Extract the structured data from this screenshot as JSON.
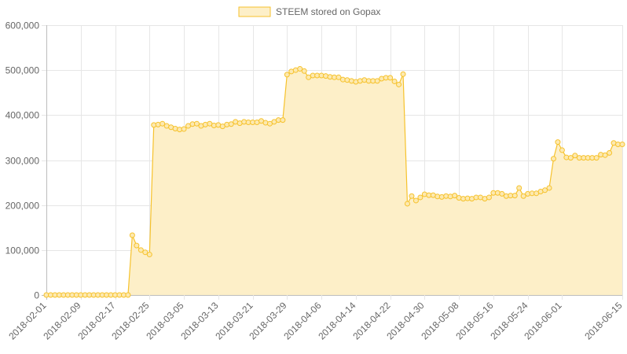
{
  "chart_data": {
    "type": "area",
    "legend": {
      "label": "STEEM stored on Gopax",
      "position": "top"
    },
    "colors": {
      "line": "#f6c22c",
      "fill": "#fdefc8",
      "point_fill": "#fde9b0",
      "grid": "#e6e6e6",
      "axis_text": "#666666"
    },
    "grid": true,
    "ylim": [
      0,
      600000
    ],
    "y_ticks": [
      "0",
      "100,000",
      "200,000",
      "300,000",
      "400,000",
      "500,000",
      "600,000"
    ],
    "x_range": [
      "2018-02-01",
      "2018-06-15"
    ],
    "x_ticks": [
      "2018-02-01",
      "2018-02-09",
      "2018-02-17",
      "2018-02-25",
      "2018-03-05",
      "2018-03-13",
      "2018-03-21",
      "2018-03-29",
      "2018-04-06",
      "2018-04-14",
      "2018-04-22",
      "2018-04-30",
      "2018-05-08",
      "2018-05-16",
      "2018-05-24",
      "2018-06-01",
      "2018-06-15"
    ],
    "x": [
      "2018-02-01",
      "2018-02-02",
      "2018-02-03",
      "2018-02-04",
      "2018-02-05",
      "2018-02-06",
      "2018-02-07",
      "2018-02-08",
      "2018-02-09",
      "2018-02-10",
      "2018-02-11",
      "2018-02-12",
      "2018-02-13",
      "2018-02-14",
      "2018-02-15",
      "2018-02-16",
      "2018-02-17",
      "2018-02-18",
      "2018-02-19",
      "2018-02-20",
      "2018-02-21",
      "2018-02-22",
      "2018-02-23",
      "2018-02-24",
      "2018-02-25",
      "2018-02-26",
      "2018-02-27",
      "2018-02-28",
      "2018-03-01",
      "2018-03-02",
      "2018-03-03",
      "2018-03-04",
      "2018-03-05",
      "2018-03-06",
      "2018-03-07",
      "2018-03-08",
      "2018-03-09",
      "2018-03-10",
      "2018-03-11",
      "2018-03-12",
      "2018-03-13",
      "2018-03-14",
      "2018-03-15",
      "2018-03-16",
      "2018-03-17",
      "2018-03-18",
      "2018-03-19",
      "2018-03-20",
      "2018-03-21",
      "2018-03-22",
      "2018-03-23",
      "2018-03-24",
      "2018-03-25",
      "2018-03-26",
      "2018-03-27",
      "2018-03-28",
      "2018-03-29",
      "2018-03-30",
      "2018-03-31",
      "2018-04-01",
      "2018-04-02",
      "2018-04-03",
      "2018-04-04",
      "2018-04-05",
      "2018-04-06",
      "2018-04-07",
      "2018-04-08",
      "2018-04-09",
      "2018-04-10",
      "2018-04-11",
      "2018-04-12",
      "2018-04-13",
      "2018-04-14",
      "2018-04-15",
      "2018-04-16",
      "2018-04-17",
      "2018-04-18",
      "2018-04-19",
      "2018-04-20",
      "2018-04-21",
      "2018-04-22",
      "2018-04-23",
      "2018-04-24",
      "2018-04-25",
      "2018-04-26",
      "2018-04-27",
      "2018-04-28",
      "2018-04-29",
      "2018-04-30",
      "2018-05-01",
      "2018-05-02",
      "2018-05-03",
      "2018-05-04",
      "2018-05-05",
      "2018-05-06",
      "2018-05-07",
      "2018-05-08",
      "2018-05-09",
      "2018-05-10",
      "2018-05-11",
      "2018-05-12",
      "2018-05-13",
      "2018-05-14",
      "2018-05-15",
      "2018-05-16",
      "2018-05-17",
      "2018-05-18",
      "2018-05-19",
      "2018-05-20",
      "2018-05-21",
      "2018-05-22",
      "2018-05-23",
      "2018-05-24",
      "2018-05-25",
      "2018-05-26",
      "2018-05-27",
      "2018-05-28",
      "2018-05-29",
      "2018-05-30",
      "2018-05-31",
      "2018-06-01",
      "2018-06-02",
      "2018-06-03",
      "2018-06-04",
      "2018-06-05",
      "2018-06-06",
      "2018-06-07",
      "2018-06-08",
      "2018-06-09",
      "2018-06-10",
      "2018-06-11",
      "2018-06-12",
      "2018-06-13",
      "2018-06-14",
      "2018-06-15"
    ],
    "series": [
      {
        "name": "STEEM stored on Gopax",
        "values": [
          0,
          0,
          0,
          0,
          0,
          0,
          0,
          0,
          0,
          0,
          0,
          0,
          0,
          0,
          0,
          0,
          0,
          0,
          0,
          0,
          133000,
          110000,
          100000,
          95000,
          90000,
          378000,
          379000,
          381000,
          376000,
          373000,
          370000,
          368000,
          369000,
          376000,
          380000,
          381000,
          376000,
          379000,
          381000,
          377000,
          378000,
          375000,
          379000,
          380000,
          385000,
          382000,
          385000,
          384000,
          384000,
          384000,
          387000,
          383000,
          381000,
          385000,
          389000,
          389000,
          490000,
          497000,
          500000,
          503000,
          498000,
          484000,
          488000,
          488000,
          488000,
          487000,
          485000,
          484000,
          484000,
          479000,
          478000,
          476000,
          474000,
          476000,
          478000,
          476000,
          476000,
          476000,
          481000,
          483000,
          483000,
          475000,
          468000,
          491000,
          203000,
          220000,
          210000,
          217000,
          224000,
          222000,
          222000,
          219000,
          218000,
          220000,
          219000,
          221000,
          216000,
          214000,
          215000,
          214000,
          217000,
          217000,
          214000,
          217000,
          227000,
          227000,
          225000,
          220000,
          221000,
          221000,
          238000,
          220000,
          225000,
          226000,
          226000,
          230000,
          233000,
          238000,
          303000,
          340000,
          322000,
          306000,
          305000,
          310000,
          305000,
          305000,
          305000,
          305000,
          305000,
          312000,
          311000,
          316000,
          338000,
          335000,
          335000
        ]
      }
    ]
  }
}
